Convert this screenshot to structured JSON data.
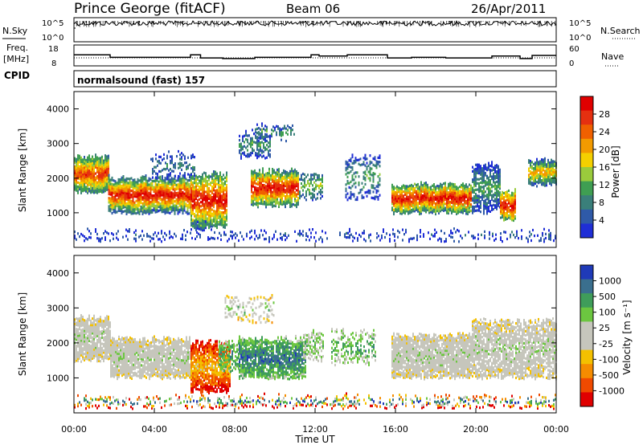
{
  "header": {
    "station": "Prince George (fitACF)",
    "beam": "Beam 06",
    "date": "26/Apr/2011"
  },
  "labels": {
    "nsky": "N.Sky",
    "nsearch": "N.Search",
    "freq": "Freq.",
    "freq_unit": "[MHz]",
    "nave": "Nave",
    "cpid": "CPID",
    "cpid_value": "normalsound (fast) 157"
  },
  "colors": {
    "power_scale": [
      "#1f2ed6",
      "#2f5aa8",
      "#3a7f7a",
      "#3f9e52",
      "#9acb3c",
      "#f4d000",
      "#f29a00",
      "#f06000",
      "#e53010",
      "#e00000"
    ],
    "velocity_scale": [
      "#e00000",
      "#f04a00",
      "#f58c00",
      "#f4c000",
      "#c6c6bc",
      "#c6c6bc",
      "#6cc640",
      "#3f9d5a",
      "#3a6f8e",
      "#1f3ab8"
    ]
  },
  "chart_data": [
    {
      "type": "line",
      "name": "noise-panel",
      "x": [
        "00:00",
        "04:00",
        "08:00",
        "12:00",
        "16:00",
        "20:00",
        "00:00"
      ],
      "left_axis_ticks": [
        "10^5",
        "10^0"
      ],
      "right_axis_ticks": [
        "10^5",
        "10^0"
      ]
    },
    {
      "type": "line",
      "name": "freq-nave-panel",
      "left_axis_ticks": [
        "18",
        "8"
      ],
      "right_axis_ticks": [
        "60",
        "0"
      ],
      "freq_steps": [
        {
          "t": 0.0,
          "v": 13.5
        },
        {
          "t": 1.8,
          "v": 11.5
        },
        {
          "t": 5.8,
          "v": 13.5
        },
        {
          "t": 6.3,
          "v": 11.0
        },
        {
          "t": 7.4,
          "v": 10.5
        },
        {
          "t": 9.0,
          "v": 11.5
        },
        {
          "t": 11.8,
          "v": 13.5
        },
        {
          "t": 12.2,
          "v": 12.5
        },
        {
          "t": 13.6,
          "v": 13.5
        },
        {
          "t": 15.6,
          "v": 11.0
        },
        {
          "t": 16.8,
          "v": 11.5
        },
        {
          "t": 18.5,
          "v": 11.0
        },
        {
          "t": 20.8,
          "v": 12.5
        },
        {
          "t": 22.2,
          "v": 10.5
        },
        {
          "t": 22.8,
          "v": 13.0
        },
        {
          "t": 24.0,
          "v": 13.0
        }
      ]
    },
    {
      "type": "heatmap",
      "name": "power",
      "ylabel": "Slant Range [km]",
      "ylim": [
        0,
        4500
      ],
      "y_ticks": [
        "1000",
        "2000",
        "3000",
        "4000"
      ],
      "x_ticks": [
        "00:00",
        "04:00",
        "08:00",
        "12:00",
        "16:00",
        "20:00",
        "00:00"
      ],
      "colorbar_label": "Power [dB]",
      "colorbar_ticks": [
        "4",
        "8",
        "12",
        "16",
        "20",
        "24",
        "28"
      ]
    },
    {
      "type": "heatmap",
      "name": "velocity",
      "ylabel": "Slant Range [km]",
      "xlabel": "Time UT",
      "ylim": [
        0,
        4500
      ],
      "y_ticks": [
        "1000",
        "2000",
        "3000",
        "4000"
      ],
      "x_ticks": [
        "00:00",
        "04:00",
        "08:00",
        "12:00",
        "16:00",
        "20:00",
        "00:00"
      ],
      "colorbar_label": "Velocity [m s⁻¹]",
      "colorbar_ticks": [
        "1000",
        "500",
        "100",
        "25",
        "-25",
        "-100",
        "-500",
        "-1000"
      ]
    }
  ]
}
